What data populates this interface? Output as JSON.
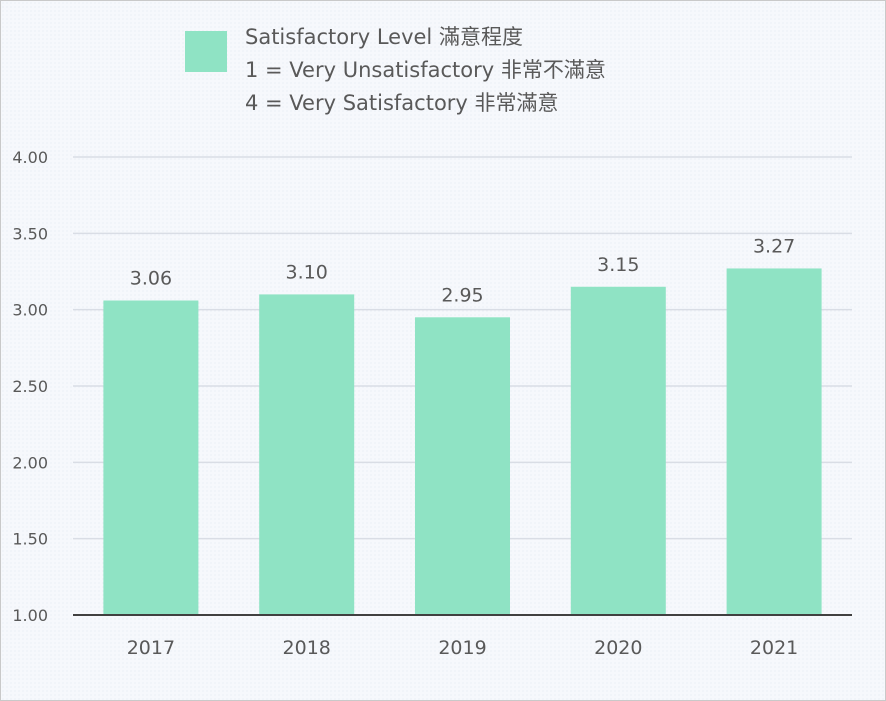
{
  "chart_data": {
    "type": "bar",
    "categories": [
      "2017",
      "2018",
      "2019",
      "2020",
      "2021"
    ],
    "series": [
      {
        "values": [
          3.06,
          3.1,
          2.95,
          3.15,
          3.27
        ],
        "color": "#8fe3c4"
      }
    ],
    "data_labels": [
      "3.06",
      "3.10",
      "2.95",
      "3.15",
      "3.27"
    ],
    "ylim": [
      1.0,
      4.0
    ],
    "yticks": [
      1.0,
      1.5,
      2.0,
      2.5,
      3.0,
      3.5,
      4.0
    ],
    "ytick_labels": [
      "1.00",
      "1.50",
      "2.00",
      "2.50",
      "3.00",
      "3.50",
      "4.00"
    ],
    "grid": true,
    "legend": {
      "position": "top",
      "lines": [
        "Satisfactory Level 滿意程度",
        "1 = Very Unsatisfactory 非常不滿意",
        "4 = Very Satisfactory 非常滿意"
      ]
    },
    "colors": {
      "bar": "#8fe3c4",
      "grid": "#d9dde5",
      "axis": "#404040",
      "text": "#595959"
    }
  }
}
